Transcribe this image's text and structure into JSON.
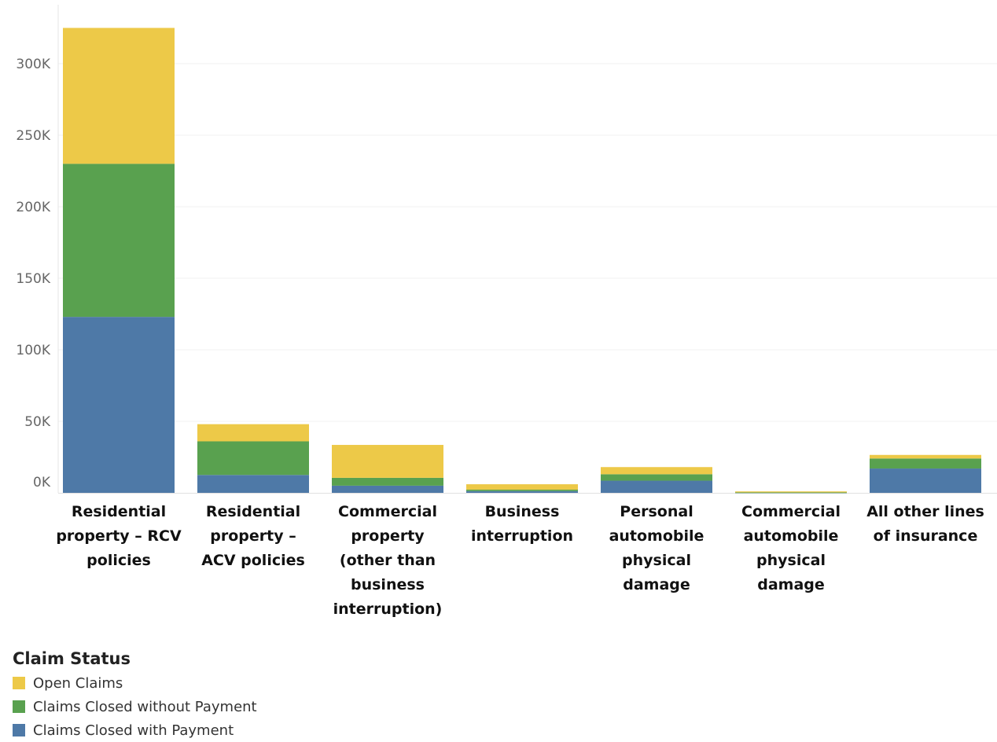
{
  "chart_data": {
    "type": "bar",
    "stacked": true,
    "categories": [
      "Residential property – RCV policies",
      "Residential property – ACV policies",
      "Commercial property (other than business interruption)",
      "Business interruption",
      "Personal automobile physical damage",
      "Commercial automobile physical damage",
      "All other lines of insurance"
    ],
    "category_lines": [
      [
        "Residential",
        "property – RCV",
        "policies"
      ],
      [
        "Residential",
        "property –",
        "ACV policies"
      ],
      [
        "Commercial",
        "property",
        "(other than",
        "business",
        "interruption)"
      ],
      [
        "Business",
        "interruption"
      ],
      [
        "Personal",
        "automobile",
        "physical",
        "damage"
      ],
      [
        "Commercial",
        "automobile",
        "physical",
        "damage"
      ],
      [
        "All other lines",
        "of insurance"
      ]
    ],
    "series": [
      {
        "name": "Claims Closed with Payment",
        "color": "#4e79a7",
        "values": [
          123000,
          12500,
          5000,
          1200,
          8500,
          200,
          17000
        ]
      },
      {
        "name": "Claims Closed without Payment",
        "color": "#59a14f",
        "values": [
          107000,
          23500,
          5500,
          1000,
          4500,
          100,
          7000
        ]
      },
      {
        "name": "Open Claims",
        "color": "#edc948",
        "values": [
          95000,
          12000,
          23000,
          3800,
          5000,
          700,
          2500
        ]
      }
    ],
    "y_ticks": [
      0,
      50000,
      100000,
      150000,
      200000,
      250000,
      300000
    ],
    "y_tick_labels": [
      "0K",
      "50K",
      "100K",
      "150K",
      "200K",
      "250K",
      "300K"
    ],
    "ylim": [
      0,
      330000
    ],
    "legend": {
      "title": "Claim Status",
      "position": "bottom-left",
      "items": [
        "Open Claims",
        "Claims Closed without Payment",
        "Claims Closed with Payment"
      ]
    },
    "grid": true
  },
  "legend_colors": {
    "Open Claims": "#edc948",
    "Claims Closed without Payment": "#59a14f",
    "Claims Closed with Payment": "#4e79a7"
  }
}
